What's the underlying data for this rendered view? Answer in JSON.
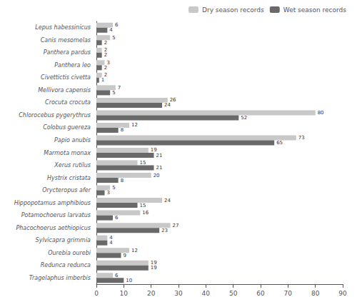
{
  "chart_data": {
    "type": "bar",
    "orientation": "horizontal",
    "categories": [
      "Lepus habessinicus",
      "Canis mesomelas",
      "Panthera pardus",
      "Panthera leo",
      "Civettictis civetta",
      "Mellivora capensis",
      "Crocuta crocuta",
      "Chlorocebus pygerythrus",
      "Colobus guereza",
      "Papio anubis",
      "Marmota monax",
      "Xerus rutilus",
      "Hystrix cristata",
      "Orycteropus afer",
      "Hippopotamus amphibious",
      "Potamochoerus larvatus",
      "Phacochoerus aethiopicus",
      "Sylvicapra grimmia",
      "Ourebia ourebi",
      "Redunca redunca",
      "Tragelaphus imberbis"
    ],
    "series": [
      {
        "name": "Dry season records",
        "color": "#c8c8c8",
        "values": [
          6,
          5,
          2,
          3,
          2,
          7,
          26,
          80,
          12,
          73,
          19,
          15,
          20,
          5,
          24,
          16,
          27,
          4,
          12,
          19,
          6
        ]
      },
      {
        "name": "Wet season records",
        "color": "#696969",
        "values": [
          4,
          2,
          2,
          2,
          1,
          5,
          24,
          52,
          8,
          65,
          21,
          21,
          8,
          3,
          15,
          6,
          23,
          4,
          9,
          19,
          10
        ]
      }
    ],
    "xlim": [
      0,
      90
    ],
    "xticks": [
      0,
      10,
      20,
      30,
      40,
      50,
      60,
      70,
      80,
      90
    ],
    "data_labels": true,
    "legend": "upper right",
    "grid": false
  }
}
